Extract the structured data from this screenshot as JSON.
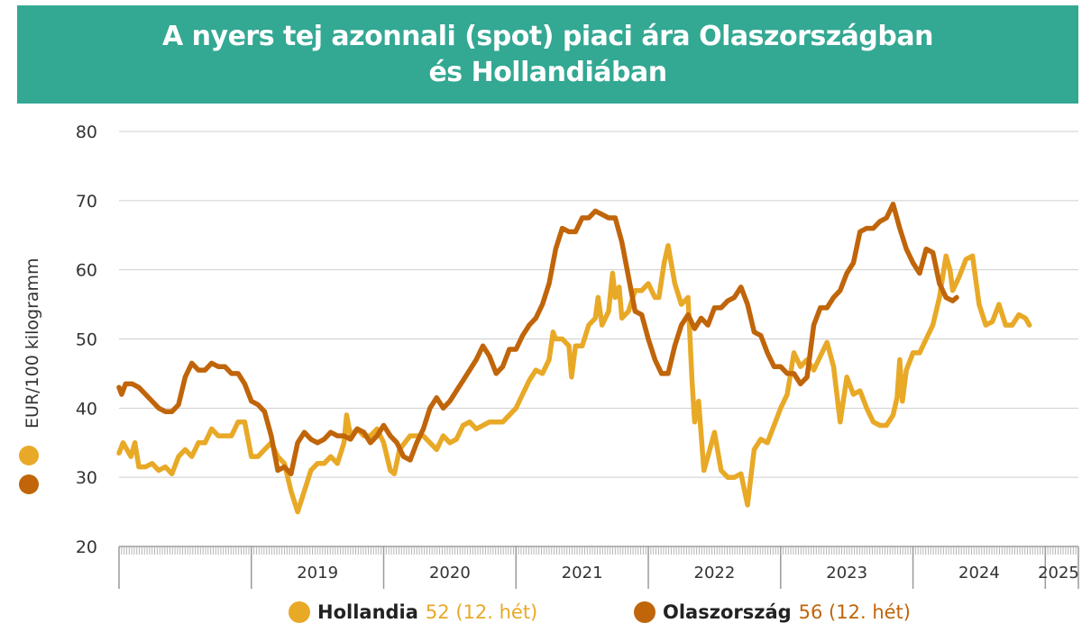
{
  "title": {
    "line1": "A nyers tej azonnali (spot) piaci ára Olaszországban",
    "line2": "és Hollandiában"
  },
  "chart_data": {
    "type": "line",
    "ylabel": "EUR/100 kilogramm",
    "ylim": [
      20,
      80
    ],
    "yticks": [
      20,
      30,
      40,
      50,
      60,
      70,
      80
    ],
    "xlim": [
      2018.0,
      2025.25
    ],
    "year_labels": [
      {
        "label": "2019",
        "x": 2019.5
      },
      {
        "label": "2020",
        "x": 2020.5
      },
      {
        "label": "2021",
        "x": 2021.5
      },
      {
        "label": "2022",
        "x": 2022.5
      },
      {
        "label": "2023",
        "x": 2023.5
      },
      {
        "label": "2024",
        "x": 2024.5
      },
      {
        "label": "2025",
        "x": 2025.1
      }
    ],
    "year_boundaries": [
      2019.0,
      2020.0,
      2021.0,
      2022.0,
      2023.0,
      2024.0,
      2025.0
    ],
    "grid": true,
    "legend_position": "bottom",
    "series": [
      {
        "name": "Hollandia",
        "annotation": "52 (12. hét)",
        "color": "#e8a927",
        "points": [
          [
            2018.0,
            33.5
          ],
          [
            2018.03,
            35
          ],
          [
            2018.06,
            34
          ],
          [
            2018.09,
            33
          ],
          [
            2018.12,
            35
          ],
          [
            2018.15,
            31.5
          ],
          [
            2018.2,
            31.5
          ],
          [
            2018.25,
            32
          ],
          [
            2018.3,
            31
          ],
          [
            2018.35,
            31.5
          ],
          [
            2018.4,
            30.5
          ],
          [
            2018.45,
            33
          ],
          [
            2018.5,
            34
          ],
          [
            2018.55,
            33
          ],
          [
            2018.6,
            35
          ],
          [
            2018.65,
            35
          ],
          [
            2018.7,
            37
          ],
          [
            2018.75,
            36
          ],
          [
            2018.8,
            36
          ],
          [
            2018.85,
            36
          ],
          [
            2018.9,
            38
          ],
          [
            2018.95,
            38
          ],
          [
            2019.0,
            33
          ],
          [
            2019.05,
            33
          ],
          [
            2019.1,
            34
          ],
          [
            2019.15,
            35
          ],
          [
            2019.2,
            33
          ],
          [
            2019.25,
            32
          ],
          [
            2019.3,
            28
          ],
          [
            2019.35,
            25
          ],
          [
            2019.4,
            28
          ],
          [
            2019.45,
            31
          ],
          [
            2019.5,
            32
          ],
          [
            2019.55,
            32
          ],
          [
            2019.6,
            33
          ],
          [
            2019.65,
            32
          ],
          [
            2019.7,
            35
          ],
          [
            2019.72,
            39
          ],
          [
            2019.75,
            36
          ],
          [
            2019.8,
            37
          ],
          [
            2019.85,
            36
          ],
          [
            2019.9,
            36
          ],
          [
            2019.95,
            37
          ],
          [
            2020.0,
            35
          ],
          [
            2020.05,
            31
          ],
          [
            2020.08,
            30.5
          ],
          [
            2020.12,
            34
          ],
          [
            2020.2,
            36
          ],
          [
            2020.3,
            36
          ],
          [
            2020.35,
            35
          ],
          [
            2020.4,
            34
          ],
          [
            2020.45,
            36
          ],
          [
            2020.5,
            35
          ],
          [
            2020.55,
            35.5
          ],
          [
            2020.6,
            37.5
          ],
          [
            2020.65,
            38
          ],
          [
            2020.7,
            37
          ],
          [
            2020.8,
            38
          ],
          [
            2020.9,
            38
          ],
          [
            2021.0,
            40
          ],
          [
            2021.05,
            42
          ],
          [
            2021.1,
            44
          ],
          [
            2021.15,
            45.5
          ],
          [
            2021.2,
            45
          ],
          [
            2021.25,
            47
          ],
          [
            2021.28,
            51
          ],
          [
            2021.3,
            50
          ],
          [
            2021.35,
            50
          ],
          [
            2021.4,
            49
          ],
          [
            2021.42,
            44.5
          ],
          [
            2021.45,
            49
          ],
          [
            2021.5,
            49
          ],
          [
            2021.55,
            52
          ],
          [
            2021.6,
            53
          ],
          [
            2021.62,
            56
          ],
          [
            2021.65,
            52
          ],
          [
            2021.7,
            54
          ],
          [
            2021.73,
            59.5
          ],
          [
            2021.75,
            56
          ],
          [
            2021.78,
            57.5
          ],
          [
            2021.8,
            53
          ],
          [
            2021.85,
            54
          ],
          [
            2021.9,
            57
          ],
          [
            2021.95,
            57
          ],
          [
            2022.0,
            58
          ],
          [
            2022.05,
            56
          ],
          [
            2022.08,
            56
          ],
          [
            2022.12,
            61
          ],
          [
            2022.15,
            63.5
          ],
          [
            2022.2,
            58
          ],
          [
            2022.25,
            55
          ],
          [
            2022.3,
            56
          ],
          [
            2022.33,
            44
          ],
          [
            2022.35,
            38
          ],
          [
            2022.38,
            41
          ],
          [
            2022.42,
            31
          ],
          [
            2022.45,
            33
          ],
          [
            2022.5,
            36.5
          ],
          [
            2022.55,
            31
          ],
          [
            2022.6,
            30
          ],
          [
            2022.65,
            30
          ],
          [
            2022.7,
            30.5
          ],
          [
            2022.75,
            26
          ],
          [
            2022.8,
            34
          ],
          [
            2022.85,
            35.5
          ],
          [
            2022.9,
            35
          ],
          [
            2022.95,
            37.5
          ],
          [
            2023.0,
            40
          ],
          [
            2023.05,
            42
          ],
          [
            2023.1,
            48
          ],
          [
            2023.15,
            46
          ],
          [
            2023.2,
            47
          ],
          [
            2023.25,
            45.5
          ],
          [
            2023.3,
            47.5
          ],
          [
            2023.35,
            49.5
          ],
          [
            2023.4,
            46
          ],
          [
            2023.45,
            38
          ],
          [
            2023.5,
            44.5
          ],
          [
            2023.55,
            42
          ],
          [
            2023.6,
            42.5
          ],
          [
            2023.65,
            40
          ],
          [
            2023.7,
            38
          ],
          [
            2023.75,
            37.5
          ],
          [
            2023.8,
            37.5
          ],
          [
            2023.85,
            39
          ],
          [
            2023.88,
            41.5
          ],
          [
            2023.9,
            47
          ],
          [
            2023.92,
            41
          ],
          [
            2023.95,
            45.5
          ],
          [
            2024.0,
            48
          ],
          [
            2024.05,
            48
          ],
          [
            2024.1,
            50
          ],
          [
            2024.15,
            52
          ],
          [
            2024.2,
            56
          ],
          [
            2024.25,
            62
          ],
          [
            2024.28,
            60
          ],
          [
            2024.3,
            57
          ],
          [
            2024.35,
            59
          ],
          [
            2024.4,
            61.5
          ],
          [
            2024.45,
            62
          ],
          [
            2024.5,
            55
          ],
          [
            2024.55,
            52
          ],
          [
            2024.6,
            52.5
          ],
          [
            2024.65,
            55
          ],
          [
            2024.7,
            52
          ],
          [
            2024.75,
            52
          ],
          [
            2024.8,
            53.5
          ],
          [
            2024.85,
            53
          ],
          [
            2024.88,
            52
          ]
        ]
      },
      {
        "name": "Olaszország",
        "annotation": "56 (12. hét)",
        "color": "#c0650a",
        "points": [
          [
            2018.0,
            43
          ],
          [
            2018.02,
            42
          ],
          [
            2018.05,
            43.5
          ],
          [
            2018.1,
            43.5
          ],
          [
            2018.15,
            43
          ],
          [
            2018.2,
            42
          ],
          [
            2018.25,
            41
          ],
          [
            2018.3,
            40
          ],
          [
            2018.35,
            39.5
          ],
          [
            2018.4,
            39.5
          ],
          [
            2018.45,
            40.5
          ],
          [
            2018.5,
            44.5
          ],
          [
            2018.55,
            46.5
          ],
          [
            2018.6,
            45.5
          ],
          [
            2018.65,
            45.5
          ],
          [
            2018.7,
            46.5
          ],
          [
            2018.75,
            46
          ],
          [
            2018.8,
            46
          ],
          [
            2018.85,
            45
          ],
          [
            2018.9,
            45
          ],
          [
            2018.95,
            43.5
          ],
          [
            2019.0,
            41
          ],
          [
            2019.05,
            40.5
          ],
          [
            2019.1,
            39.5
          ],
          [
            2019.15,
            36
          ],
          [
            2019.2,
            31
          ],
          [
            2019.25,
            31.5
          ],
          [
            2019.3,
            30.5
          ],
          [
            2019.35,
            35
          ],
          [
            2019.4,
            36.5
          ],
          [
            2019.45,
            35.5
          ],
          [
            2019.5,
            35
          ],
          [
            2019.55,
            35.5
          ],
          [
            2019.6,
            36.5
          ],
          [
            2019.65,
            36
          ],
          [
            2019.7,
            36
          ],
          [
            2019.75,
            35.5
          ],
          [
            2019.8,
            37
          ],
          [
            2019.85,
            36.5
          ],
          [
            2019.9,
            35
          ],
          [
            2019.95,
            36
          ],
          [
            2020.0,
            37.5
          ],
          [
            2020.05,
            36
          ],
          [
            2020.1,
            35
          ],
          [
            2020.15,
            33
          ],
          [
            2020.2,
            32.5
          ],
          [
            2020.25,
            35
          ],
          [
            2020.3,
            37
          ],
          [
            2020.35,
            40
          ],
          [
            2020.4,
            41.5
          ],
          [
            2020.45,
            40
          ],
          [
            2020.5,
            41
          ],
          [
            2020.55,
            42.5
          ],
          [
            2020.6,
            44
          ],
          [
            2020.65,
            45.5
          ],
          [
            2020.7,
            47
          ],
          [
            2020.75,
            49
          ],
          [
            2020.8,
            47.5
          ],
          [
            2020.85,
            45
          ],
          [
            2020.9,
            46
          ],
          [
            2020.95,
            48.5
          ],
          [
            2021.0,
            48.5
          ],
          [
            2021.05,
            50.5
          ],
          [
            2021.1,
            52
          ],
          [
            2021.15,
            53
          ],
          [
            2021.2,
            55
          ],
          [
            2021.25,
            58
          ],
          [
            2021.3,
            63
          ],
          [
            2021.35,
            66
          ],
          [
            2021.4,
            65.5
          ],
          [
            2021.45,
            65.5
          ],
          [
            2021.5,
            67.5
          ],
          [
            2021.55,
            67.5
          ],
          [
            2021.6,
            68.5
          ],
          [
            2021.65,
            68
          ],
          [
            2021.7,
            67.5
          ],
          [
            2021.75,
            67.5
          ],
          [
            2021.8,
            64
          ],
          [
            2021.85,
            59
          ],
          [
            2021.9,
            54
          ],
          [
            2021.95,
            53.5
          ],
          [
            2022.0,
            50
          ],
          [
            2022.05,
            47
          ],
          [
            2022.1,
            45
          ],
          [
            2022.15,
            45
          ],
          [
            2022.2,
            49
          ],
          [
            2022.25,
            52
          ],
          [
            2022.3,
            53.5
          ],
          [
            2022.35,
            51.5
          ],
          [
            2022.4,
            53
          ],
          [
            2022.45,
            52
          ],
          [
            2022.5,
            54.5
          ],
          [
            2022.55,
            54.5
          ],
          [
            2022.6,
            55.5
          ],
          [
            2022.65,
            56
          ],
          [
            2022.7,
            57.5
          ],
          [
            2022.75,
            55
          ],
          [
            2022.8,
            51
          ],
          [
            2022.85,
            50.5
          ],
          [
            2022.9,
            48
          ],
          [
            2022.95,
            46
          ],
          [
            2023.0,
            46
          ],
          [
            2023.05,
            45
          ],
          [
            2023.1,
            45
          ],
          [
            2023.15,
            43.5
          ],
          [
            2023.2,
            44.5
          ],
          [
            2023.25,
            52
          ],
          [
            2023.3,
            54.5
          ],
          [
            2023.35,
            54.5
          ],
          [
            2023.4,
            56
          ],
          [
            2023.45,
            57
          ],
          [
            2023.5,
            59.5
          ],
          [
            2023.55,
            61
          ],
          [
            2023.6,
            65.5
          ],
          [
            2023.65,
            66
          ],
          [
            2023.7,
            66
          ],
          [
            2023.75,
            67
          ],
          [
            2023.8,
            67.5
          ],
          [
            2023.85,
            69.5
          ],
          [
            2023.9,
            66
          ],
          [
            2023.95,
            63
          ],
          [
            2024.0,
            61
          ],
          [
            2024.05,
            59.5
          ],
          [
            2024.1,
            63
          ],
          [
            2024.15,
            62.5
          ],
          [
            2024.2,
            58
          ],
          [
            2024.25,
            56
          ],
          [
            2024.3,
            55.5
          ],
          [
            2024.33,
            56
          ]
        ]
      }
    ]
  },
  "legend": {
    "hollandia": {
      "name": "Hollandia",
      "value": "52 (12. hét)",
      "color": "#e8a927"
    },
    "olaszorszag": {
      "name": "Olaszország",
      "value": "56 (12. hét)",
      "color": "#c0650a"
    }
  }
}
